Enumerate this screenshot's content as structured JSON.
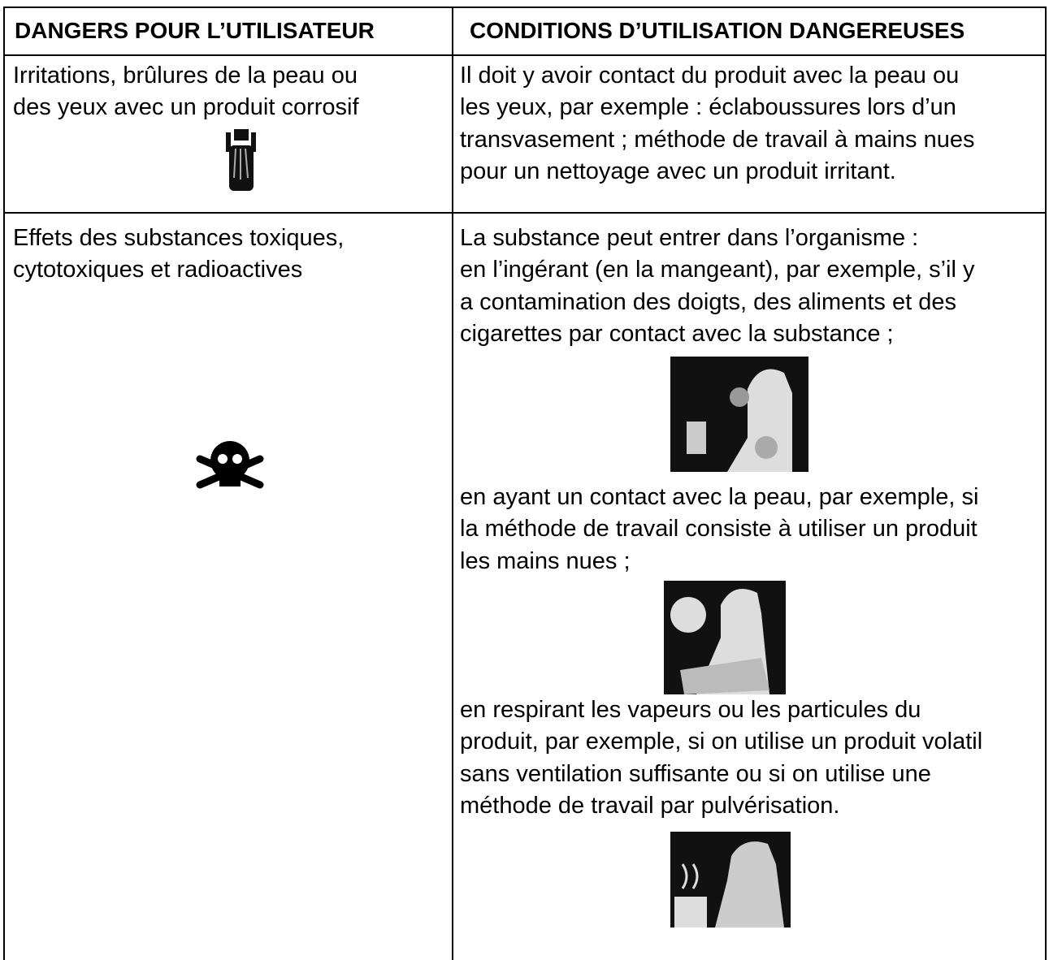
{
  "table": {
    "headers": [
      "DANGERS POUR L’UTILISATEUR",
      "CONDITIONS D’UTILISATION DANGEREUSES"
    ],
    "rows": [
      [
        [
          [
            "Irritations, brûlures de la peau ou",
            "des yeux avec un produit corrosif"
          ]
        ],
        [
          [
            "Il doit y avoir contact du produit avec la peau ou",
            "les yeux, par exemple : éclaboussures lors d’un",
            "transvasement ; méthode de travail à mains nues",
            "pour un nettoyage avec un produit irritant."
          ]
        ]
      ],
      [
        [
          [
            "Effets des substances toxiques,",
            "cytotoxiques et radioactives"
          ]
        ],
        [
          [
            "La substance peut entrer dans l’organisme :",
            "en l’ingérant (en la mangeant), par exemple, s’il y",
            "a contamination des doigts, des aliments et des",
            "cigarettes par contact avec la substance ;"
          ],
          [
            "en ayant un contact avec la peau, par exemple, si",
            "la méthode de travail consiste à utiliser un produit",
            "les mains nues ;"
          ],
          [
            "en respirant les vapeurs ou les particules du",
            "produit, par exemple, si on utilise un produit volatil",
            "sans ventilation suffisante ou si on utilise une",
            "méthode de travail par pulvérisation."
          ]
        ]
      ]
    ]
  }
}
